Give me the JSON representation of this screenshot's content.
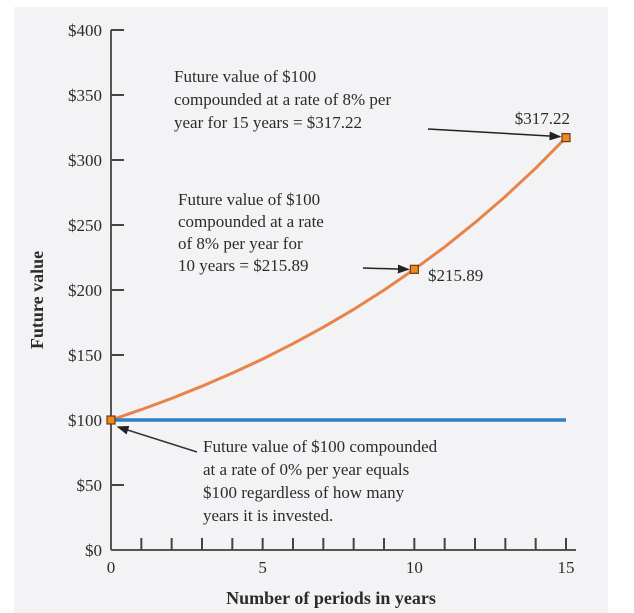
{
  "chart_data": {
    "type": "line",
    "title": "",
    "xlabel": "Number of periods in years",
    "ylabel": "Future value",
    "xlim": [
      0,
      15
    ],
    "ylim": [
      0,
      400
    ],
    "x_ticks": [
      0,
      1,
      2,
      3,
      4,
      5,
      6,
      7,
      8,
      9,
      10,
      11,
      12,
      13,
      14,
      15
    ],
    "x_tick_labels": [
      "0",
      "5",
      "10",
      "15"
    ],
    "x_tick_label_values": [
      0,
      5,
      10,
      15
    ],
    "y_ticks": [
      0,
      50,
      100,
      150,
      200,
      250,
      300,
      350,
      400
    ],
    "y_tick_labels": [
      "$0",
      "$50",
      "$100",
      "$150",
      "$200",
      "$250",
      "$300",
      "$350",
      "$400"
    ],
    "grid": false,
    "series": [
      {
        "name": "8% per year",
        "color": "#e8834a",
        "x": [
          0,
          1,
          2,
          3,
          4,
          5,
          6,
          7,
          8,
          9,
          10,
          11,
          12,
          13,
          14,
          15
        ],
        "values": [
          100,
          108,
          116.64,
          125.97,
          136.05,
          146.93,
          158.69,
          171.38,
          185.09,
          199.9,
          215.89,
          233.16,
          251.82,
          271.96,
          293.72,
          317.22
        ]
      },
      {
        "name": "0% per year",
        "color": "#2f7fc1",
        "x": [
          0,
          15
        ],
        "values": [
          100,
          100
        ]
      }
    ],
    "markers": [
      {
        "x": 0,
        "y": 100
      },
      {
        "x": 10,
        "y": 215.89,
        "label": "$215.89"
      },
      {
        "x": 15,
        "y": 317.22,
        "label": "$317.22"
      }
    ],
    "annotations": [
      {
        "id": "a15",
        "lines": [
          "Future value of $100",
          "compounded at a rate of 8% per",
          "year for 15 years =  $317.22"
        ]
      },
      {
        "id": "a10",
        "lines": [
          "Future value of $100",
          "compounded at a rate",
          "of 8% per year for",
          "10 years =  $215.89"
        ]
      },
      {
        "id": "a0",
        "lines": [
          "Future value of $100 compounded",
          "at a rate of 0% per year equals",
          "$100 regardless of how many",
          "years it is invested."
        ]
      }
    ]
  }
}
